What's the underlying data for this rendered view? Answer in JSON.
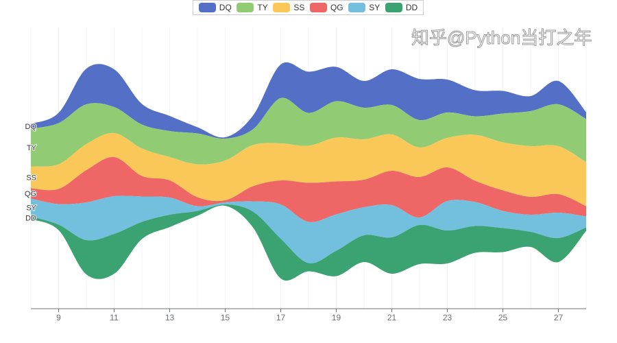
{
  "chart_data": {
    "type": "themeRiver",
    "title": "",
    "xlabel": "",
    "ylabel": "",
    "x": [
      8,
      9,
      10,
      11,
      12,
      13,
      14,
      15,
      16,
      17,
      18,
      19,
      20,
      21,
      22,
      23,
      24,
      25,
      26,
      27,
      28
    ],
    "x_tick_labels": [
      "9",
      "11",
      "13",
      "15",
      "17",
      "19",
      "21",
      "23",
      "25",
      "27"
    ],
    "legend_position": "top-center",
    "series": [
      {
        "name": "DQ",
        "color": "#5470c6",
        "values": [
          7,
          15,
          52,
          55,
          30,
          22,
          9,
          2,
          20,
          49,
          60,
          50,
          39,
          52,
          60,
          48,
          38,
          33,
          22,
          34,
          10
        ]
      },
      {
        "name": "TY",
        "color": "#91cc75",
        "values": [
          55,
          60,
          58,
          38,
          35,
          38,
          45,
          32,
          23,
          66,
          48,
          53,
          46,
          43,
          40,
          37,
          27,
          42,
          51,
          61,
          63
        ]
      },
      {
        "name": "SS",
        "color": "#fac858",
        "values": [
          32,
          36,
          38,
          35,
          40,
          34,
          48,
          58,
          60,
          54,
          54,
          64,
          59,
          53,
          43,
          43,
          67,
          70,
          74,
          70,
          64
        ]
      },
      {
        "name": "QG",
        "color": "#ee6666",
        "values": [
          15,
          22,
          47,
          57,
          30,
          25,
          13,
          3,
          22,
          35,
          57,
          48,
          40,
          50,
          59,
          49,
          31,
          30,
          26,
          27,
          15
        ]
      },
      {
        "name": "SY",
        "color": "#73c0de",
        "values": [
          26,
          30,
          55,
          55,
          37,
          25,
          7,
          3,
          15,
          50,
          60,
          53,
          41,
          47,
          11,
          43,
          35,
          25,
          25,
          37,
          16
        ]
      },
      {
        "name": "DD",
        "color": "#3ba272",
        "values": [
          4,
          8,
          50,
          58,
          25,
          18,
          7,
          2,
          23,
          58,
          12,
          37,
          39,
          53,
          57,
          48,
          39,
          35,
          22,
          35,
          5
        ]
      }
    ]
  },
  "watermark": "知乎@Python当打之年"
}
